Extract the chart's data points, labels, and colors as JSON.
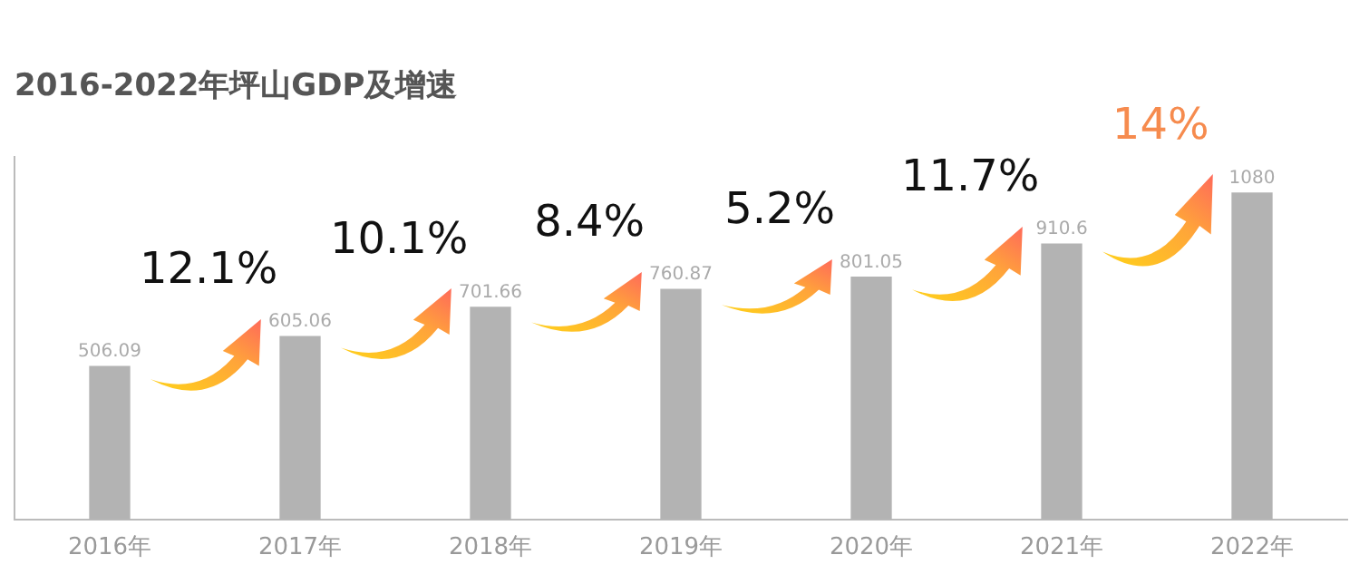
{
  "chart_data": {
    "type": "bar",
    "title": "2016-2022年坪山GDP及增速",
    "categories": [
      "2016年",
      "2017年",
      "2018年",
      "2019年",
      "2020年",
      "2021年",
      "2022年"
    ],
    "values": [
      506.09,
      605.06,
      701.66,
      760.87,
      801.05,
      910.6,
      1080
    ],
    "color": "#b3b3b3",
    "ylim": [
      0,
      1200
    ],
    "tick_labels": "x",
    "data_labels": true,
    "grid": false,
    "legend": false,
    "annotations": [
      "12.1%",
      "10.1%",
      "8.4%",
      "5.2%",
      "11.7%",
      "14%"
    ]
  }
}
